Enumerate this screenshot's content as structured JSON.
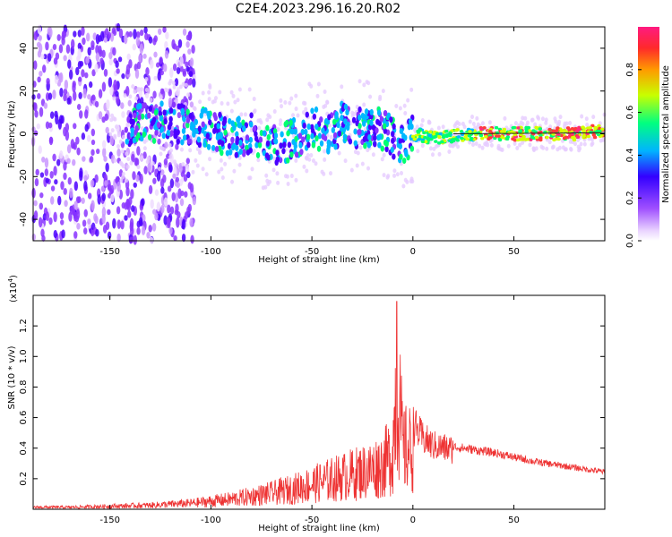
{
  "title": "C2E4.2023.296.16.20.R02",
  "colors": {
    "snr_line": "#ee3333",
    "colormap": [
      "#ffffff",
      "#f0e0ff",
      "#c08cff",
      "#7a1fff",
      "#2f00ff",
      "#00b4ff",
      "#00ff80",
      "#ffff00",
      "#ff3b3b",
      "#ff1a80"
    ]
  },
  "chart_data": [
    {
      "type": "heatmap",
      "name": "spectrogram",
      "title": "",
      "xlabel": "Height of straight line (km)",
      "ylabel": "Frequency (Hz)",
      "xlim": [
        -188,
        95
      ],
      "ylim": [
        -50,
        50
      ],
      "xticks": [
        -150,
        -100,
        -50,
        0,
        50
      ],
      "yticks": [
        -40,
        -20,
        0,
        20,
        40
      ],
      "ridge": {
        "x": [
          -140,
          -120,
          -100,
          -90,
          -80,
          -70,
          -60,
          -50,
          -40,
          -35,
          -30,
          -20,
          -12,
          -5,
          0,
          10,
          20,
          30,
          40,
          50,
          60,
          70,
          80,
          90,
          95
        ],
        "y": [
          4,
          6,
          2,
          -2,
          0,
          -6,
          -3,
          3,
          0,
          6,
          2,
          4,
          0,
          -6,
          0,
          -2,
          -1,
          0,
          0,
          0,
          0,
          0,
          0,
          1,
          2
        ]
      },
      "colorbar": {
        "label": "Normalized spectral amplitude",
        "min": 0,
        "max": 1,
        "ticks": [
          "0.0",
          "0.2",
          "0.4",
          "0.6",
          "0.8"
        ],
        "tick_values": [
          0,
          0.2,
          0.4,
          0.6,
          0.8
        ]
      }
    },
    {
      "type": "line",
      "name": "snr",
      "title": "",
      "xlabel": "Height of straight line (km)",
      "ylabel": "SNR (10 * v/v)",
      "yscale_label": "(x10",
      "yscale_exp": "4",
      "yscale_close": ")",
      "xlim": [
        -188,
        95
      ],
      "ylim": [
        0,
        1.4
      ],
      "xticks": [
        -150,
        -100,
        -50,
        0,
        50
      ],
      "yticks": [
        0.2,
        0.4,
        0.6,
        0.8,
        1.0,
        1.2
      ],
      "ytick_labels": [
        "0.2",
        "0.4",
        "0.6",
        "0.8",
        "1.0",
        "1.2"
      ],
      "series": [
        {
          "x": [
            -188,
            -170,
            -150,
            -130,
            -110,
            -100,
            -90,
            -80,
            -70,
            -60,
            -50,
            -40,
            -30,
            -20,
            -15,
            -10,
            -8,
            -5,
            0,
            5,
            10,
            20,
            30,
            40,
            50,
            60,
            70,
            80,
            90,
            95
          ],
          "y": [
            0.02,
            0.02,
            0.03,
            0.04,
            0.06,
            0.08,
            0.1,
            0.13,
            0.16,
            0.2,
            0.25,
            0.3,
            0.35,
            0.4,
            0.45,
            0.55,
            1.36,
            0.6,
            0.6,
            0.5,
            0.45,
            0.42,
            0.4,
            0.38,
            0.35,
            0.32,
            0.3,
            0.28,
            0.26,
            0.25
          ]
        }
      ]
    }
  ]
}
